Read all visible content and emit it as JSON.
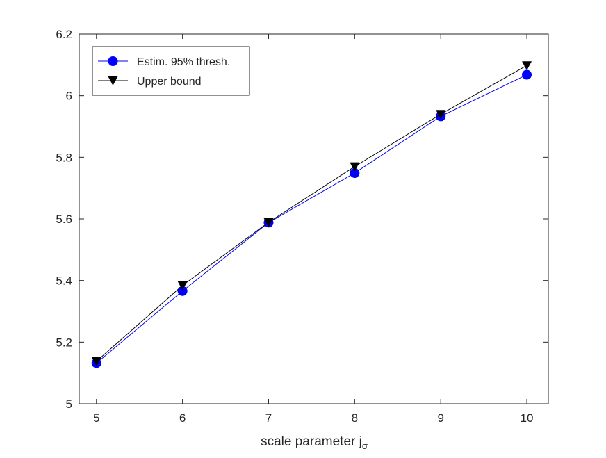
{
  "chart_data": {
    "type": "line",
    "title": "",
    "xlabel": "scale parameter j",
    "xlabel_subscript": "σ",
    "ylabel": "",
    "xlim": [
      4.8,
      10.25
    ],
    "ylim": [
      5.0,
      6.2
    ],
    "x_ticks": [
      5,
      6,
      7,
      8,
      9,
      10
    ],
    "y_ticks": [
      5.0,
      5.2,
      5.4,
      5.6,
      5.8,
      6.0,
      6.2
    ],
    "x_tick_labels": [
      "5",
      "6",
      "7",
      "8",
      "9",
      "10"
    ],
    "y_tick_labels": [
      "5",
      "5.2",
      "5.4",
      "5.6",
      "5.8",
      "6",
      "6.2"
    ],
    "grid": false,
    "legend_position": "top-left",
    "series": [
      {
        "name": "Estim. 95% thresh.",
        "color": "#0000ff",
        "marker": "circle",
        "x": [
          5,
          6,
          7,
          8,
          9,
          10
        ],
        "y": [
          5.132,
          5.366,
          5.588,
          5.749,
          5.933,
          6.068
        ]
      },
      {
        "name": "Upper bound",
        "color": "#000000",
        "marker": "triangle-down",
        "x": [
          5,
          6,
          7,
          8,
          9,
          10
        ],
        "y": [
          5.138,
          5.384,
          5.589,
          5.77,
          5.94,
          6.098
        ]
      }
    ]
  }
}
